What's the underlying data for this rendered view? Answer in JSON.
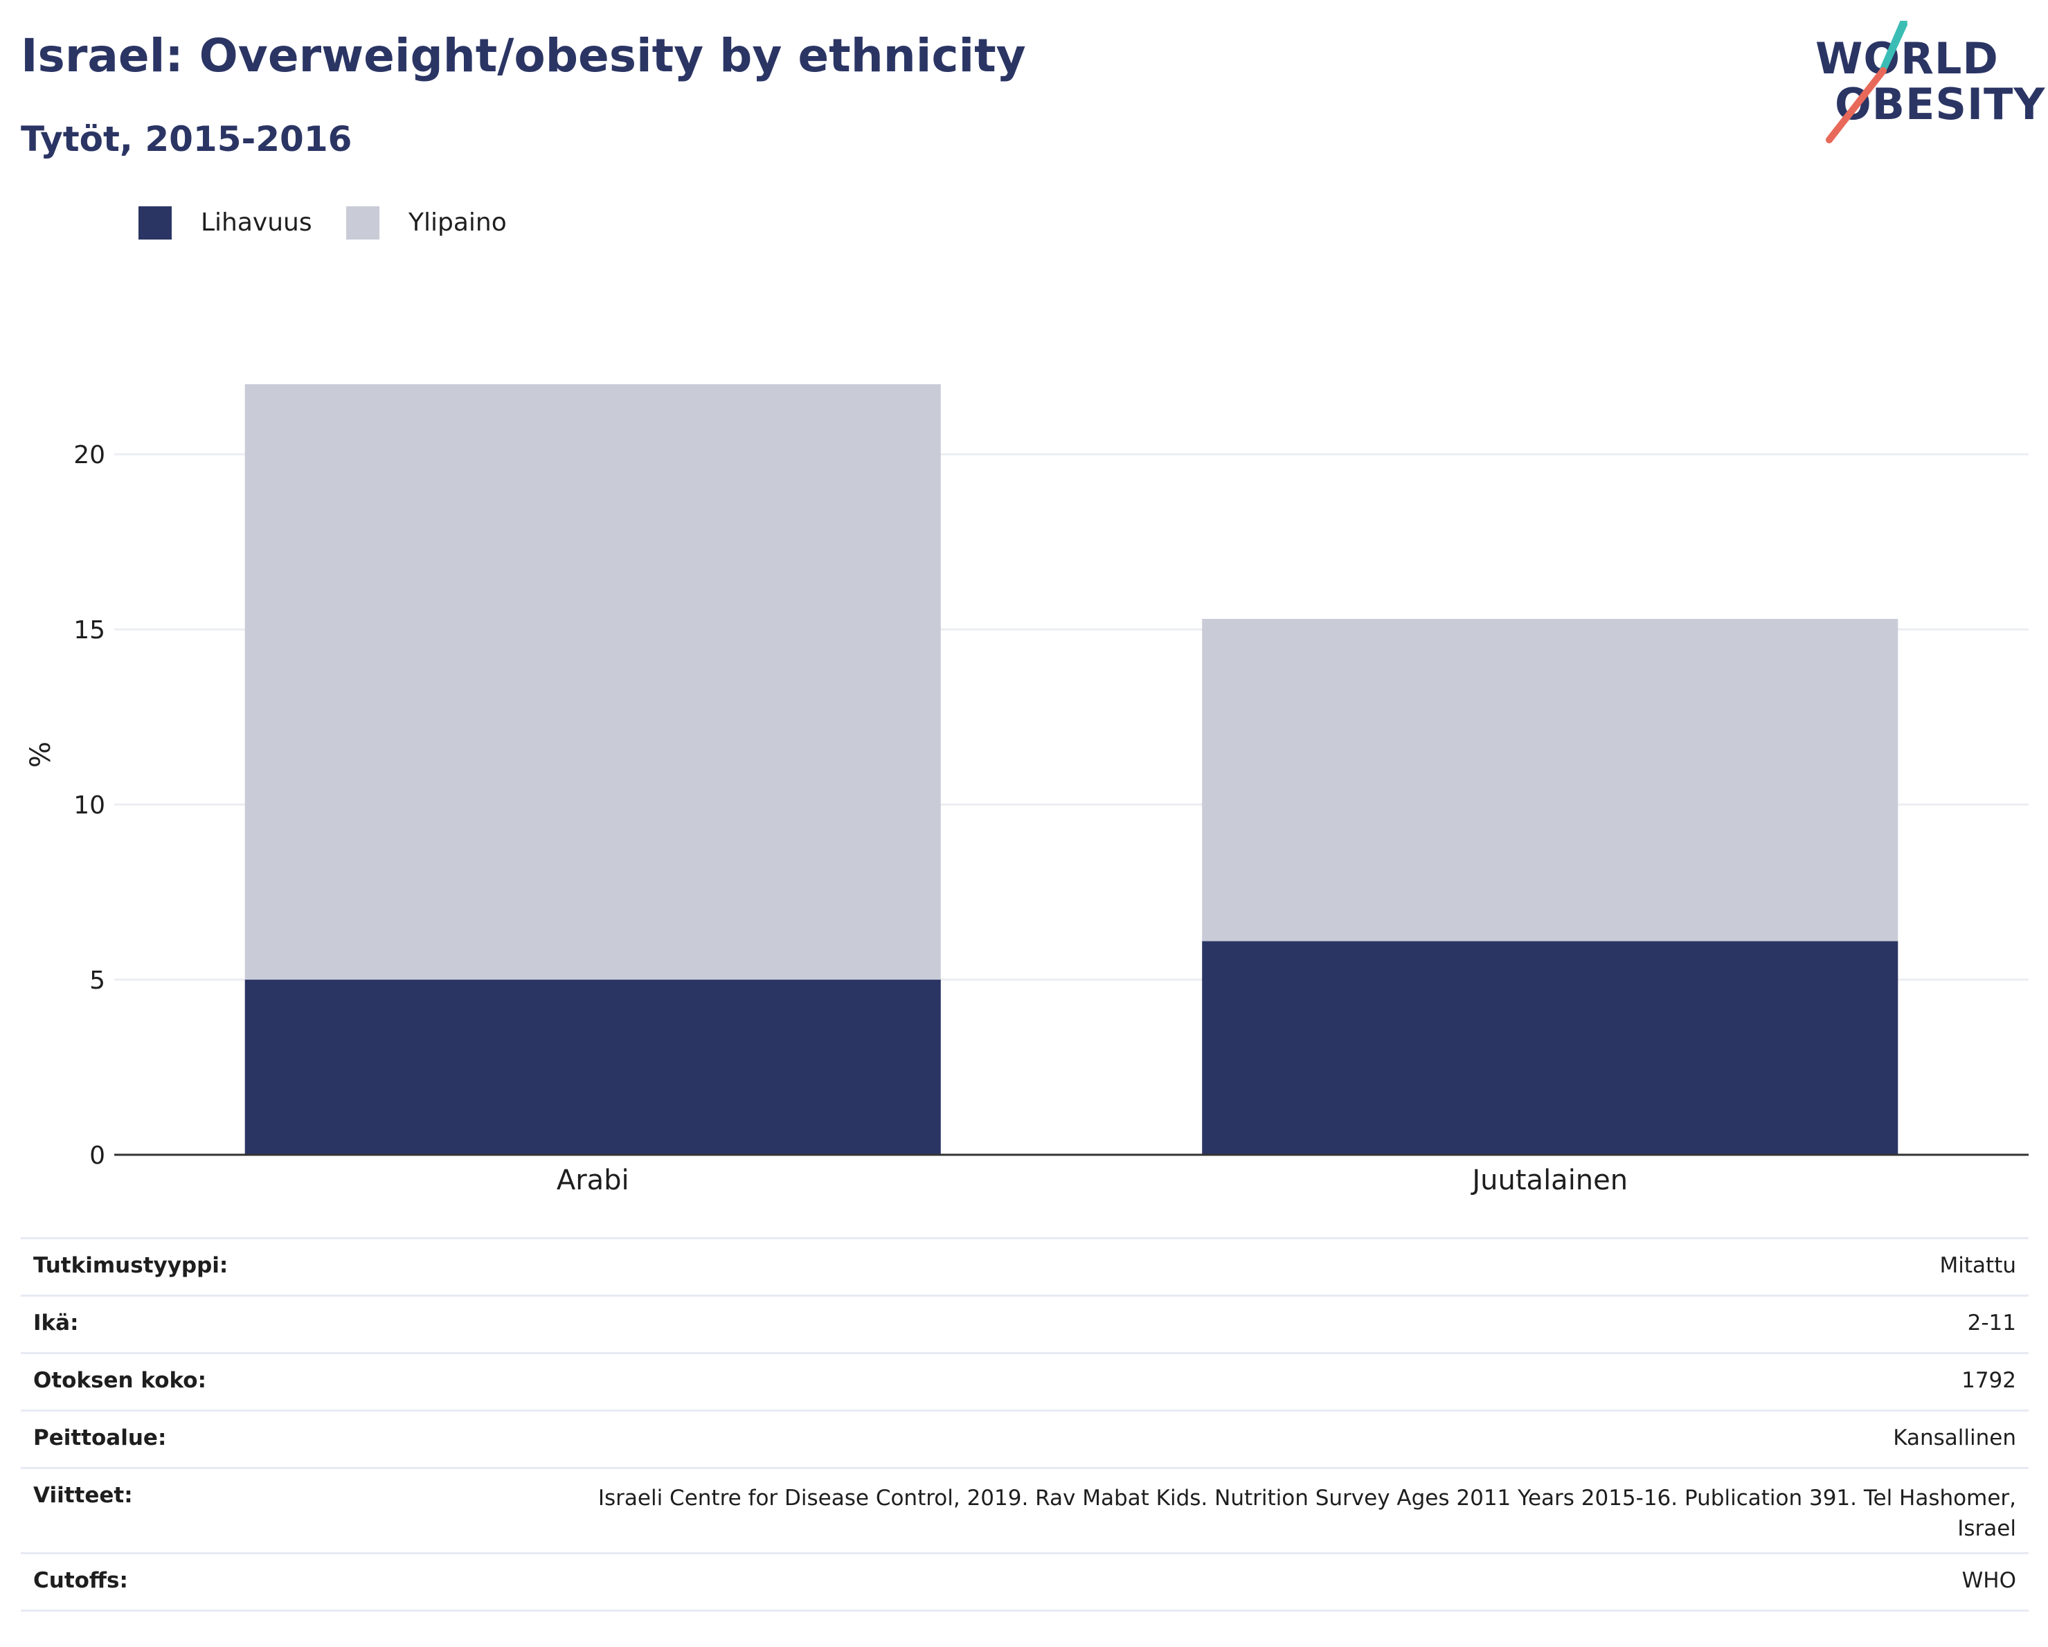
{
  "header": {
    "title": "Israel: Overweight/obesity by ethnicity",
    "subtitle": "Tytöt, 2015-2016"
  },
  "logo": {
    "line1": "WORLD",
    "line2": "OBESITY",
    "colors": {
      "text": "#2b3564",
      "slash_top": "#3bbdb5",
      "slash_bottom": "#e8695a"
    }
  },
  "colors": {
    "obesity": "#2b3564",
    "overweight": "#c9ccd7",
    "grid": "#ebedf2",
    "axis": "#333333"
  },
  "chart_data": {
    "type": "bar",
    "stacked": true,
    "title": "Israel: Overweight/obesity by ethnicity",
    "subtitle": "Tytöt, 2015-2016",
    "xlabel": "",
    "ylabel": "%",
    "categories": [
      "Arabi",
      "Juutalainen"
    ],
    "series": [
      {
        "name": "Lihavuus",
        "values": [
          5.0,
          6.1
        ]
      },
      {
        "name": "Ylipaino",
        "values": [
          17.0,
          9.2
        ]
      }
    ],
    "ylim": [
      0,
      22
    ],
    "yticks": [
      0,
      5,
      10,
      15,
      20
    ],
    "grid": true,
    "legend": "top-left"
  },
  "details": [
    {
      "label": "Tutkimustyyppi:",
      "value": "Mitattu"
    },
    {
      "label": "Ikä:",
      "value": "2-11"
    },
    {
      "label": "Otoksen koko:",
      "value": "1792"
    },
    {
      "label": "Peittoalue:",
      "value": "Kansallinen"
    },
    {
      "label": "Viitteet:",
      "value_line1": "Israeli Centre for Disease Control, 2019. Rav Mabat Kids. Nutrition Survey Ages 2011 Years 2015-16. Publication 391. Tel Hashomer,",
      "value_line2": "Israel"
    },
    {
      "label": "Cutoffs:",
      "value": "WHO"
    }
  ]
}
